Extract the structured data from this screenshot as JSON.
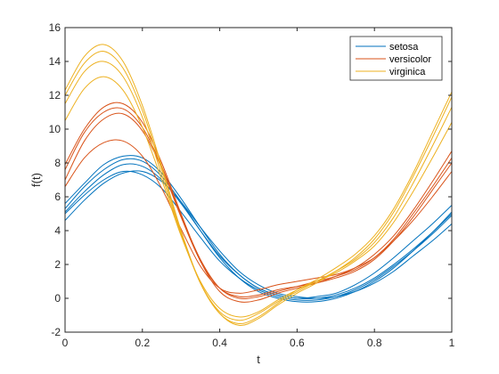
{
  "chart_data": {
    "type": "line",
    "title": "",
    "xlabel": "t",
    "ylabel": "f(t)",
    "xlim": [
      0,
      1
    ],
    "ylim": [
      -2,
      16
    ],
    "x_ticks": [
      "0",
      "0.2",
      "0.4",
      "0.6",
      "0.8",
      "1"
    ],
    "y_ticks": [
      "-2",
      "0",
      "2",
      "4",
      "6",
      "8",
      "10",
      "12",
      "14",
      "16"
    ],
    "grid": false,
    "legend_position": "top-right",
    "t": [
      0,
      0.05,
      0.1,
      0.15,
      0.2,
      0.25,
      0.3,
      0.35,
      0.4,
      0.45,
      0.5,
      0.55,
      0.6,
      0.65,
      0.7,
      0.75,
      0.8,
      0.85,
      0.9,
      0.95,
      1
    ],
    "series": [
      {
        "name": "setosa",
        "color": "#0072BD",
        "lines": [
          [
            5.1,
            6.3,
            7.3,
            7.9,
            7.8,
            7.0,
            5.6,
            4.0,
            2.5,
            1.4,
            0.6,
            0.2,
            0.0,
            0.0,
            0.2,
            0.6,
            1.2,
            2.0,
            2.9,
            3.9,
            5.0
          ],
          [
            4.6,
            5.8,
            6.8,
            7.4,
            7.5,
            6.9,
            5.7,
            4.2,
            2.8,
            1.6,
            0.8,
            0.3,
            0.1,
            0.0,
            0.1,
            0.4,
            0.9,
            1.6,
            2.5,
            3.4,
            4.4
          ],
          [
            5.6,
            6.8,
            7.9,
            8.4,
            8.3,
            7.4,
            5.9,
            4.2,
            2.6,
            1.4,
            0.6,
            0.2,
            0.0,
            0.1,
            0.3,
            0.8,
            1.5,
            2.4,
            3.4,
            4.4,
            5.5
          ],
          [
            5.0,
            6.1,
            7.0,
            7.5,
            7.3,
            6.5,
            5.1,
            3.6,
            2.2,
            1.2,
            0.5,
            0.1,
            -0.1,
            -0.1,
            0.1,
            0.5,
            1.1,
            1.9,
            2.8,
            3.8,
            4.9
          ],
          [
            5.3,
            6.6,
            7.6,
            8.2,
            8.1,
            7.2,
            5.7,
            4.0,
            2.4,
            1.2,
            0.4,
            0.0,
            -0.2,
            -0.2,
            0.0,
            0.4,
            1.0,
            1.8,
            2.8,
            3.9,
            5.1
          ]
        ]
      },
      {
        "name": "versicolor",
        "color": "#D95319",
        "lines": [
          [
            7.0,
            9.3,
            10.6,
            10.9,
            9.9,
            7.7,
            4.8,
            2.2,
            0.6,
            0.1,
            0.2,
            0.5,
            0.7,
            0.9,
            1.2,
            1.6,
            2.3,
            3.4,
            4.8,
            6.4,
            8.0
          ],
          [
            7.9,
            10.0,
            11.3,
            11.5,
            10.4,
            8.0,
            5.0,
            2.2,
            0.4,
            -0.2,
            -0.1,
            0.3,
            0.6,
            0.9,
            1.3,
            1.8,
            2.6,
            3.7,
            5.2,
            6.9,
            8.7
          ],
          [
            6.6,
            8.3,
            9.2,
            9.3,
            8.4,
            6.5,
            4.1,
            1.9,
            0.6,
            0.3,
            0.5,
            0.8,
            1.0,
            1.2,
            1.4,
            1.8,
            2.4,
            3.4,
            4.6,
            6.0,
            7.5
          ],
          [
            7.6,
            9.8,
            11.0,
            11.2,
            10.1,
            7.8,
            4.9,
            2.3,
            0.6,
            0.0,
            0.1,
            0.4,
            0.7,
            1.0,
            1.3,
            1.7,
            2.4,
            3.5,
            5.0,
            6.6,
            8.3
          ]
        ]
      },
      {
        "name": "virginica",
        "color": "#EDB120",
        "lines": [
          [
            11.5,
            13.4,
            14.0,
            13.1,
            10.7,
            7.3,
            3.8,
            0.9,
            -0.8,
            -1.3,
            -0.9,
            -0.2,
            0.4,
            1.0,
            1.6,
            2.3,
            3.3,
            4.8,
            6.8,
            9.0,
            11.3
          ],
          [
            12.3,
            14.3,
            15.0,
            14.0,
            11.4,
            7.8,
            4.0,
            0.9,
            -0.9,
            -1.5,
            -1.1,
            -0.3,
            0.5,
            1.1,
            1.8,
            2.6,
            3.7,
            5.3,
            7.4,
            9.8,
            12.2
          ],
          [
            10.5,
            12.4,
            13.1,
            12.3,
            10.1,
            7.0,
            3.7,
            1.0,
            -0.6,
            -1.1,
            -0.8,
            -0.1,
            0.5,
            1.0,
            1.5,
            2.2,
            3.1,
            4.5,
            6.3,
            8.3,
            10.4
          ],
          [
            12.0,
            13.9,
            14.6,
            13.6,
            11.1,
            7.6,
            3.9,
            0.9,
            -0.9,
            -1.6,
            -1.2,
            -0.4,
            0.3,
            0.9,
            1.6,
            2.4,
            3.5,
            5.1,
            7.2,
            9.5,
            11.9
          ]
        ]
      }
    ]
  }
}
